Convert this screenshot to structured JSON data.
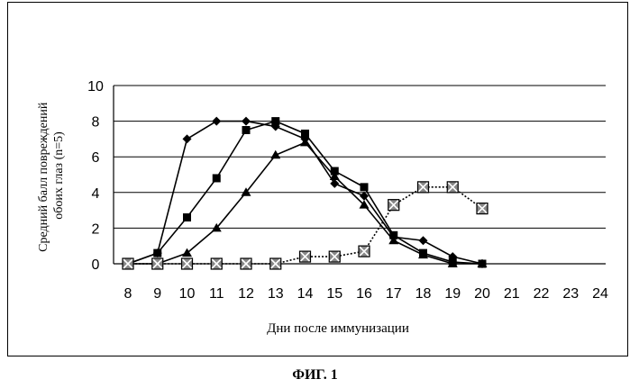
{
  "figure_caption": "ФИГ. 1",
  "chart_data": {
    "type": "line",
    "title": "",
    "xlabel": "Дни после иммунизации",
    "ylabel_lines": [
      "Средний балл повреждений",
      "обоих глаз (n=5)"
    ],
    "x": [
      8,
      9,
      10,
      11,
      12,
      13,
      14,
      15,
      16,
      17,
      18,
      19,
      20,
      21,
      22,
      23,
      24
    ],
    "xlim": [
      8,
      24
    ],
    "ylim": [
      0,
      10
    ],
    "yticks": [
      0,
      2,
      4,
      6,
      8,
      10
    ],
    "grid": "horizontal",
    "legend": "none",
    "series": [
      {
        "marker": "diamond",
        "color": "#000000",
        "line_style": "solid",
        "x": [
          8,
          9,
          10,
          11,
          12,
          13,
          14,
          15,
          16,
          17,
          18,
          19,
          20
        ],
        "values": [
          0,
          0.6,
          7.0,
          8.0,
          8.0,
          7.7,
          7.0,
          4.5,
          3.8,
          1.5,
          1.3,
          0.4,
          0
        ]
      },
      {
        "marker": "square",
        "color": "#000000",
        "line_style": "solid",
        "x": [
          8,
          9,
          10,
          11,
          12,
          13,
          14,
          15,
          16,
          17,
          18,
          19,
          20
        ],
        "values": [
          0,
          0.6,
          2.6,
          4.8,
          7.5,
          8.0,
          7.3,
          5.2,
          4.3,
          1.6,
          0.6,
          0.1,
          0
        ]
      },
      {
        "marker": "triangle",
        "color": "#000000",
        "line_style": "solid",
        "x": [
          8,
          9,
          10,
          11,
          12,
          13,
          14,
          15,
          16,
          17,
          18,
          19,
          20
        ],
        "values": [
          0,
          0,
          0.6,
          2.0,
          4.0,
          6.1,
          6.8,
          4.9,
          3.3,
          1.3,
          0.5,
          0,
          0
        ]
      },
      {
        "marker": "x-square",
        "color": "#000000",
        "line_style": "dotted",
        "x": [
          8,
          9,
          10,
          11,
          12,
          13,
          14,
          15,
          16,
          17,
          18,
          19,
          20
        ],
        "values": [
          0,
          0,
          0,
          0,
          0,
          0,
          0.4,
          0.4,
          0.7,
          3.3,
          4.3,
          4.3,
          3.1
        ]
      }
    ]
  }
}
